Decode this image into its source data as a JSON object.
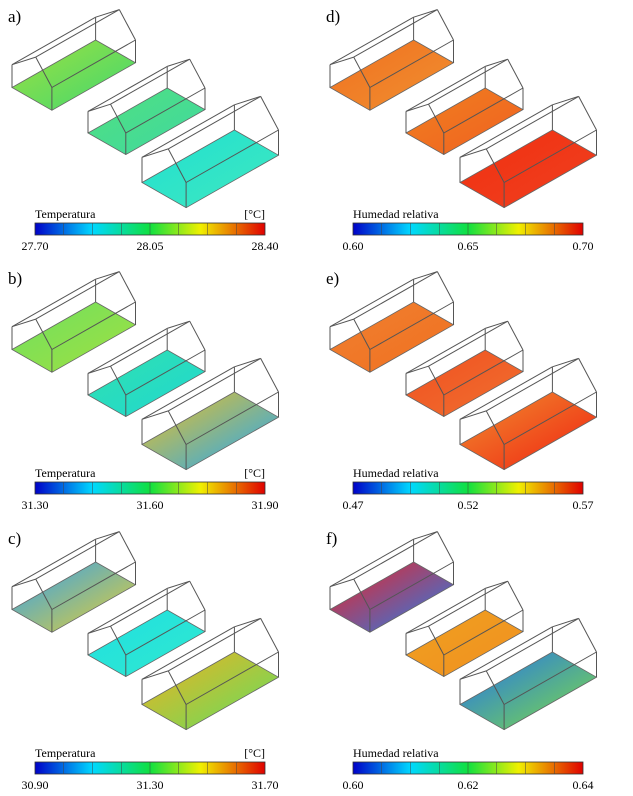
{
  "panels": [
    {
      "label": "a)",
      "colorbar": {
        "title": "Temperatura",
        "unit": "[°C]",
        "ticks": [
          "27.70",
          "28.05",
          "28.40"
        ]
      }
    },
    {
      "label": "b)",
      "colorbar": {
        "title": "Temperatura",
        "unit": "[°C]",
        "ticks": [
          "31.30",
          "31.60",
          "31.90"
        ]
      }
    },
    {
      "label": "c)",
      "colorbar": {
        "title": "Temperatura",
        "unit": "[°C]",
        "ticks": [
          "30.90",
          "31.30",
          "31.70"
        ]
      }
    },
    {
      "label": "d)",
      "colorbar": {
        "title": "Humedad relativa",
        "ticks": [
          "0.60",
          "0.65",
          "0.70"
        ]
      }
    },
    {
      "label": "e)",
      "colorbar": {
        "title": "Humedad relativa",
        "ticks": [
          "0.47",
          "0.52",
          "0.57"
        ]
      }
    },
    {
      "label": "f)",
      "colorbar": {
        "title": "Humedad relativa",
        "ticks": [
          "0.60",
          "0.62",
          "0.64"
        ]
      }
    }
  ]
}
